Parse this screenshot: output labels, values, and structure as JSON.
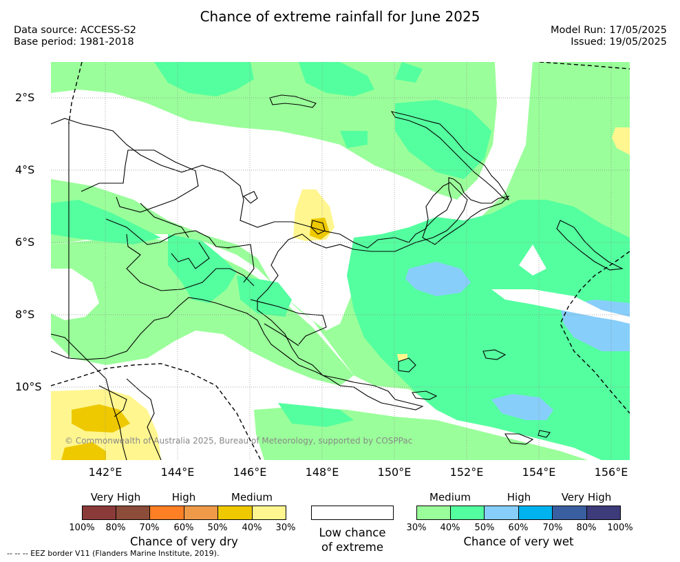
{
  "title": "Chance of extreme rainfall for June 2025",
  "header": {
    "data_source": "Data source: ACCESS-S2",
    "base_period": "Base period: 1981-2018",
    "model_run": "Model Run: 17/05/2025",
    "issued": "Issued: 19/05/2025"
  },
  "map": {
    "copyright": "© Commonwealth of Australia 2025, Bureau of Meteorology, supported by COSPPac",
    "lat_labels": [
      "2°S",
      "4°S",
      "6°S",
      "8°S",
      "10°S"
    ],
    "lon_labels": [
      "142°E",
      "144°E",
      "146°E",
      "148°E",
      "150°E",
      "152°E",
      "154°E",
      "156°E"
    ],
    "lat_range": [
      -12,
      -1
    ],
    "lon_range": [
      140.5,
      156.5
    ],
    "colors": {
      "land_outline": "#000000",
      "grid": "#888888",
      "dry_30": "#fff68f",
      "dry_40": "#eec900",
      "wet_30": "#9aff9a",
      "wet_40": "#54ff9f",
      "wet_50": "#87cefa"
    }
  },
  "legend": {
    "dry": {
      "levels": [
        "Very High",
        "High",
        "Medium"
      ],
      "percents": [
        "100%",
        "80%",
        "70%",
        "60%",
        "50%",
        "40%",
        "30%"
      ],
      "colors": [
        "#8b3a3a",
        "#8b4c39",
        "#ff7f24",
        "#ee9a49",
        "#eec900",
        "#fff68f"
      ],
      "caption": "Chance of very dry"
    },
    "neutral": {
      "color": "#ffffff",
      "caption_line1": "Low chance",
      "caption_line2": "of extreme"
    },
    "wet": {
      "levels": [
        "Medium",
        "High",
        "Very High"
      ],
      "percents": [
        "30%",
        "40%",
        "50%",
        "60%",
        "70%",
        "80%",
        "100%"
      ],
      "colors": [
        "#9aff9a",
        "#54ff9f",
        "#87cefa",
        "#00b2ee",
        "#3a5fa0",
        "#3d3b7a"
      ],
      "caption": "Chance of very wet"
    }
  },
  "footnote": "-- -- -- EEZ border V11 (Flanders Marine Institute, 2019)."
}
